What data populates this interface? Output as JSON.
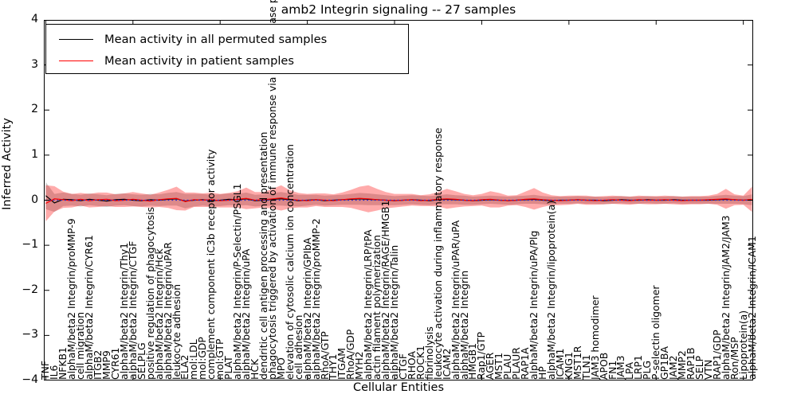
{
  "figure": {
    "title": "amb2 Integrin signaling -- 27 samples",
    "xlabel": "Cellular Entities",
    "ylabel": "Inferred Activity",
    "legend": {
      "items": [
        {
          "label": "Mean activity in all permuted samples",
          "color": "#000000"
        },
        {
          "label": "Mean activity in patient samples",
          "color": "#ff0000"
        }
      ]
    }
  },
  "chart_data": {
    "type": "line",
    "title": "amb2 Integrin signaling -- 27 samples",
    "xlabel": "Cellular Entities",
    "ylabel": "Inferred Activity",
    "ylim": [
      -4,
      4
    ],
    "yticks": [
      4,
      3,
      2,
      1,
      0,
      -1,
      -2,
      -3,
      -4
    ],
    "ytick_labels": [
      "4",
      "3",
      "2",
      "1",
      "0",
      "−1",
      "−2",
      "−3",
      "−4"
    ],
    "grid": false,
    "legend_position": "upper left",
    "zero_line": {
      "y": 0,
      "color": "#2b2bcc",
      "style": "dotted"
    },
    "entities": [
      "TNF",
      "IL6",
      "NFKB1",
      "alphaM/beta2 Integrin/proMMP-9",
      "cell migration",
      "alphaM/beta2 Integrin/CYR61",
      "ITGB2",
      "MMP9",
      "CYR61",
      "alphaM/beta2 Integrin/Thy1",
      "alphaM/beta2 Integrin/CTGF",
      "SELPLG",
      "positive regulation of phagocytosis",
      "alphaM/beta2 Integrin/Hck",
      "alphaM/beta2 Integrin/uPAR",
      "leukocyte adhesion",
      "ELA2",
      "mol:LDL",
      "mol:GDP",
      "complement component iC3b receptor activity",
      "mol:GTP",
      "PLAT",
      "alphaM/beta2 Integrin/P-Selectin/PSGL1",
      "alphaM/beta2 Integrin/uPA",
      "HCK",
      "dendritic cell antigen processing and presentation",
      "phagocytosis triggered by activation of immune response via the urokinase plasminogen activator",
      "MPO",
      "elevation of cytosolic calcium ion concentration",
      "cell adhesion",
      "alphaM/beta2 Integrin/GPIbA",
      "alphaM/beta2 Integrin/proMMP-2",
      "RhoA/GTP",
      "THY1",
      "ITGAM",
      "RhoA/GDP",
      "MYH2",
      "alphaM/beta2 Integrin/LRP/tPA",
      "actin filament polymerization",
      "alphaM/beta2 Integrin/RAGE/HMGB1",
      "alphaM/beta2 Integrin/Talin",
      "CTGF",
      "RHOA",
      "ROCK1",
      "fibrinolysis",
      "leukocyte activation during inflammatory response",
      "ICAM2",
      "alphaM/beta2 Integrin/uPAR/uPA",
      "alphaM/beta2 Integrin",
      "HMGB1",
      "Rap1/GTP",
      "AGER",
      "MST1",
      "PLAU",
      "PLAUR",
      "RAP1A",
      "alphaM/beta2 Integrin/uPA/Plg",
      "HP",
      "alphaM/beta2 Integrin/lipoprotein(a)",
      "ICAM1",
      "KNG1",
      "MST1R",
      "TLN1",
      "JAM3 homodimer",
      "APOB",
      "FN1",
      "JAM3",
      "LPA",
      "LRP1",
      "PLG",
      "P-selectin oligomer",
      "GP1BA",
      "JAM2",
      "MMP2",
      "RAP1B",
      "SELP",
      "VTN",
      "RAP1/GDP",
      "alphaM/beta2 Integrin/JAM2/JAM3",
      "Ron/MSP",
      "Lipoprotein(a)",
      "alphaM/beta2 Integrin/ICAM1"
    ],
    "series": [
      {
        "name": "Mean activity in all permuted samples",
        "color": "#000000",
        "band_color": "rgba(110,110,110,0.35)",
        "mean": [
          0.1,
          -0.06,
          0.02,
          0.01,
          -0.01,
          0.02,
          0.0,
          -0.02,
          0.01,
          0.02,
          0.0,
          -0.01,
          0.01,
          0.0,
          0.02,
          0.03,
          -0.02,
          0.0,
          0.01,
          -0.01,
          0.0,
          0.02,
          0.01,
          0.03,
          -0.01,
          0.0,
          0.02,
          0.03,
          0.01,
          -0.01,
          0.0,
          0.01,
          -0.01,
          0.0,
          0.01,
          0.02,
          0.03,
          0.02,
          0.01,
          0.0,
          -0.01,
          0.0,
          0.01,
          0.0,
          -0.01,
          0.01,
          0.02,
          0.01,
          0.0,
          -0.01,
          0.0,
          0.01,
          0.0,
          -0.01,
          0.0,
          0.01,
          0.02,
          0.0,
          -0.01,
          0.0,
          0.0,
          0.01,
          0.0,
          0.0,
          -0.01,
          0.0,
          0.01,
          0.0,
          0.0,
          0.01,
          0.0,
          0.0,
          0.01,
          0.0,
          0.0,
          0.0,
          0.0,
          0.01,
          0.02,
          0.01,
          0.0,
          0.01
        ],
        "band_halfwidth": [
          0.3,
          0.2,
          0.15,
          0.13,
          0.13,
          0.13,
          0.13,
          0.13,
          0.13,
          0.13,
          0.13,
          0.13,
          0.13,
          0.13,
          0.14,
          0.15,
          0.16,
          0.14,
          0.13,
          0.13,
          0.13,
          0.13,
          0.13,
          0.14,
          0.13,
          0.13,
          0.14,
          0.15,
          0.14,
          0.13,
          0.12,
          0.11,
          0.11,
          0.11,
          0.11,
          0.12,
          0.13,
          0.13,
          0.12,
          0.11,
          0.1,
          0.1,
          0.1,
          0.1,
          0.1,
          0.1,
          0.11,
          0.1,
          0.1,
          0.09,
          0.09,
          0.09,
          0.09,
          0.09,
          0.09,
          0.09,
          0.1,
          0.09,
          0.09,
          0.08,
          0.08,
          0.08,
          0.08,
          0.08,
          0.08,
          0.08,
          0.08,
          0.08,
          0.08,
          0.08,
          0.08,
          0.08,
          0.08,
          0.08,
          0.08,
          0.08,
          0.08,
          0.09,
          0.1,
          0.09,
          0.09,
          0.12
        ]
      },
      {
        "name": "Mean activity in patient samples",
        "color": "#ff0000",
        "band_color": "rgba(255,0,0,0.33)",
        "mean": [
          -0.07,
          0.03,
          0.01,
          -0.01,
          0.02,
          -0.01,
          0.01,
          0.02,
          -0.01,
          0.0,
          0.02,
          0.0,
          -0.02,
          0.01,
          0.03,
          0.04,
          -0.03,
          0.01,
          0.0,
          0.01,
          -0.01,
          0.0,
          0.02,
          0.04,
          0.0,
          0.01,
          0.03,
          0.05,
          0.02,
          0.0,
          -0.01,
          0.01,
          0.0,
          -0.01,
          0.01,
          0.03,
          0.04,
          0.03,
          0.01,
          0.0,
          -0.01,
          0.0,
          0.01,
          -0.01,
          0.0,
          0.02,
          0.03,
          0.02,
          0.0,
          -0.01,
          0.01,
          0.02,
          0.0,
          -0.01,
          0.0,
          0.02,
          0.03,
          0.01,
          0.0,
          -0.01,
          0.0,
          0.01,
          0.0,
          -0.01,
          0.0,
          0.01,
          0.0,
          -0.01,
          0.01,
          0.0,
          0.0,
          0.01,
          0.0,
          -0.01,
          0.0,
          0.0,
          0.01,
          0.02,
          0.03,
          0.01,
          0.0,
          0.02
        ],
        "band_halfwidth": [
          0.4,
          0.28,
          0.18,
          0.15,
          0.14,
          0.15,
          0.16,
          0.15,
          0.14,
          0.15,
          0.16,
          0.15,
          0.14,
          0.16,
          0.2,
          0.26,
          0.2,
          0.16,
          0.15,
          0.16,
          0.15,
          0.16,
          0.18,
          0.24,
          0.18,
          0.17,
          0.22,
          0.28,
          0.2,
          0.16,
          0.15,
          0.14,
          0.15,
          0.14,
          0.16,
          0.2,
          0.26,
          0.3,
          0.24,
          0.18,
          0.15,
          0.14,
          0.13,
          0.12,
          0.13,
          0.16,
          0.22,
          0.18,
          0.14,
          0.12,
          0.13,
          0.18,
          0.16,
          0.11,
          0.11,
          0.17,
          0.24,
          0.16,
          0.11,
          0.1,
          0.1,
          0.09,
          0.1,
          0.09,
          0.09,
          0.09,
          0.09,
          0.09,
          0.09,
          0.09,
          0.09,
          0.09,
          0.09,
          0.09,
          0.09,
          0.09,
          0.09,
          0.12,
          0.22,
          0.12,
          0.1,
          0.28
        ]
      }
    ]
  }
}
